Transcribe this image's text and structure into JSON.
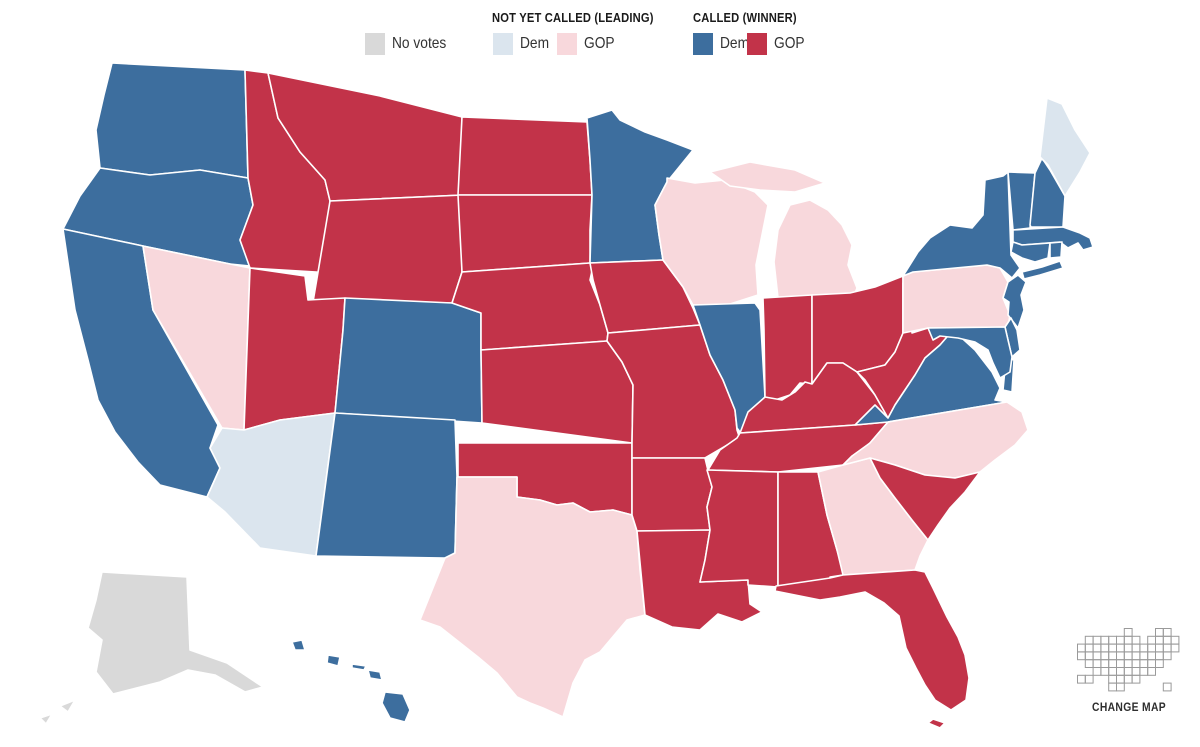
{
  "legend": {
    "no_votes": {
      "label": "No votes"
    },
    "not_yet_called": {
      "title": "NOT YET CALLED (LEADING)",
      "dem_label": "Dem",
      "gop_label": "GOP"
    },
    "called": {
      "title": "CALLED (WINNER)",
      "dem_label": "Dem",
      "gop_label": "GOP"
    }
  },
  "change_map": {
    "label": "CHANGE MAP"
  },
  "colors": {
    "dem_win": "#3d6e9e",
    "gop_win": "#c23349",
    "dem_lead": "#dbe5ee",
    "gop_lead": "#f8d8dc",
    "no_votes": "#d9d9d9",
    "border": "#ffffff",
    "carto_stroke": "#9a9a9a"
  },
  "map": {
    "states": [
      {
        "id": "WA",
        "name": "Washington",
        "status": "dem_win"
      },
      {
        "id": "OR",
        "name": "Oregon",
        "status": "dem_win"
      },
      {
        "id": "CA",
        "name": "California",
        "status": "dem_win"
      },
      {
        "id": "NV",
        "name": "Nevada",
        "status": "gop_lead"
      },
      {
        "id": "ID",
        "name": "Idaho",
        "status": "gop_win"
      },
      {
        "id": "MT",
        "name": "Montana",
        "status": "gop_win"
      },
      {
        "id": "WY",
        "name": "Wyoming",
        "status": "gop_win"
      },
      {
        "id": "UT",
        "name": "Utah",
        "status": "gop_win"
      },
      {
        "id": "CO",
        "name": "Colorado",
        "status": "dem_win"
      },
      {
        "id": "AZ",
        "name": "Arizona",
        "status": "dem_lead"
      },
      {
        "id": "NM",
        "name": "New Mexico",
        "status": "dem_win"
      },
      {
        "id": "ND",
        "name": "North Dakota",
        "status": "gop_win"
      },
      {
        "id": "SD",
        "name": "South Dakota",
        "status": "gop_win"
      },
      {
        "id": "NE",
        "name": "Nebraska",
        "status": "gop_win"
      },
      {
        "id": "KS",
        "name": "Kansas",
        "status": "gop_win"
      },
      {
        "id": "OK",
        "name": "Oklahoma",
        "status": "gop_win"
      },
      {
        "id": "TX",
        "name": "Texas",
        "status": "gop_lead"
      },
      {
        "id": "MN",
        "name": "Minnesota",
        "status": "dem_win"
      },
      {
        "id": "IA",
        "name": "Iowa",
        "status": "gop_win"
      },
      {
        "id": "MO",
        "name": "Missouri",
        "status": "gop_win"
      },
      {
        "id": "AR",
        "name": "Arkansas",
        "status": "gop_win"
      },
      {
        "id": "LA",
        "name": "Louisiana",
        "status": "gop_win"
      },
      {
        "id": "WI",
        "name": "Wisconsin",
        "status": "gop_lead"
      },
      {
        "id": "MI",
        "name": "Michigan",
        "status": "gop_lead"
      },
      {
        "id": "IL",
        "name": "Illinois",
        "status": "dem_win"
      },
      {
        "id": "IN",
        "name": "Indiana",
        "status": "gop_win"
      },
      {
        "id": "OH",
        "name": "Ohio",
        "status": "gop_win"
      },
      {
        "id": "KY",
        "name": "Kentucky",
        "status": "gop_win"
      },
      {
        "id": "TN",
        "name": "Tennessee",
        "status": "gop_win"
      },
      {
        "id": "MS",
        "name": "Mississippi",
        "status": "gop_win"
      },
      {
        "id": "AL",
        "name": "Alabama",
        "status": "gop_win"
      },
      {
        "id": "GA",
        "name": "Georgia",
        "status": "gop_lead"
      },
      {
        "id": "WV",
        "name": "West Virginia",
        "status": "gop_win"
      },
      {
        "id": "VA",
        "name": "Virginia",
        "status": "dem_win"
      },
      {
        "id": "NC",
        "name": "North Carolina",
        "status": "gop_lead"
      },
      {
        "id": "SC",
        "name": "South Carolina",
        "status": "gop_win"
      },
      {
        "id": "FL",
        "name": "Florida",
        "status": "gop_win"
      },
      {
        "id": "PA",
        "name": "Pennsylvania",
        "status": "gop_lead"
      },
      {
        "id": "NY",
        "name": "New York",
        "status": "dem_win"
      },
      {
        "id": "NJ",
        "name": "New Jersey",
        "status": "dem_win"
      },
      {
        "id": "DE",
        "name": "Delaware",
        "status": "dem_win"
      },
      {
        "id": "MD",
        "name": "Maryland",
        "status": "dem_win"
      },
      {
        "id": "VT",
        "name": "Vermont",
        "status": "dem_win"
      },
      {
        "id": "NH",
        "name": "New Hampshire",
        "status": "dem_win"
      },
      {
        "id": "ME",
        "name": "Maine",
        "status": "dem_lead"
      },
      {
        "id": "MA",
        "name": "Massachusetts",
        "status": "dem_win"
      },
      {
        "id": "CT",
        "name": "Connecticut",
        "status": "dem_win"
      },
      {
        "id": "RI",
        "name": "Rhode Island",
        "status": "dem_win"
      },
      {
        "id": "AK",
        "name": "Alaska",
        "status": "no_votes"
      },
      {
        "id": "HI",
        "name": "Hawaii",
        "status": "dem_win"
      }
    ]
  }
}
